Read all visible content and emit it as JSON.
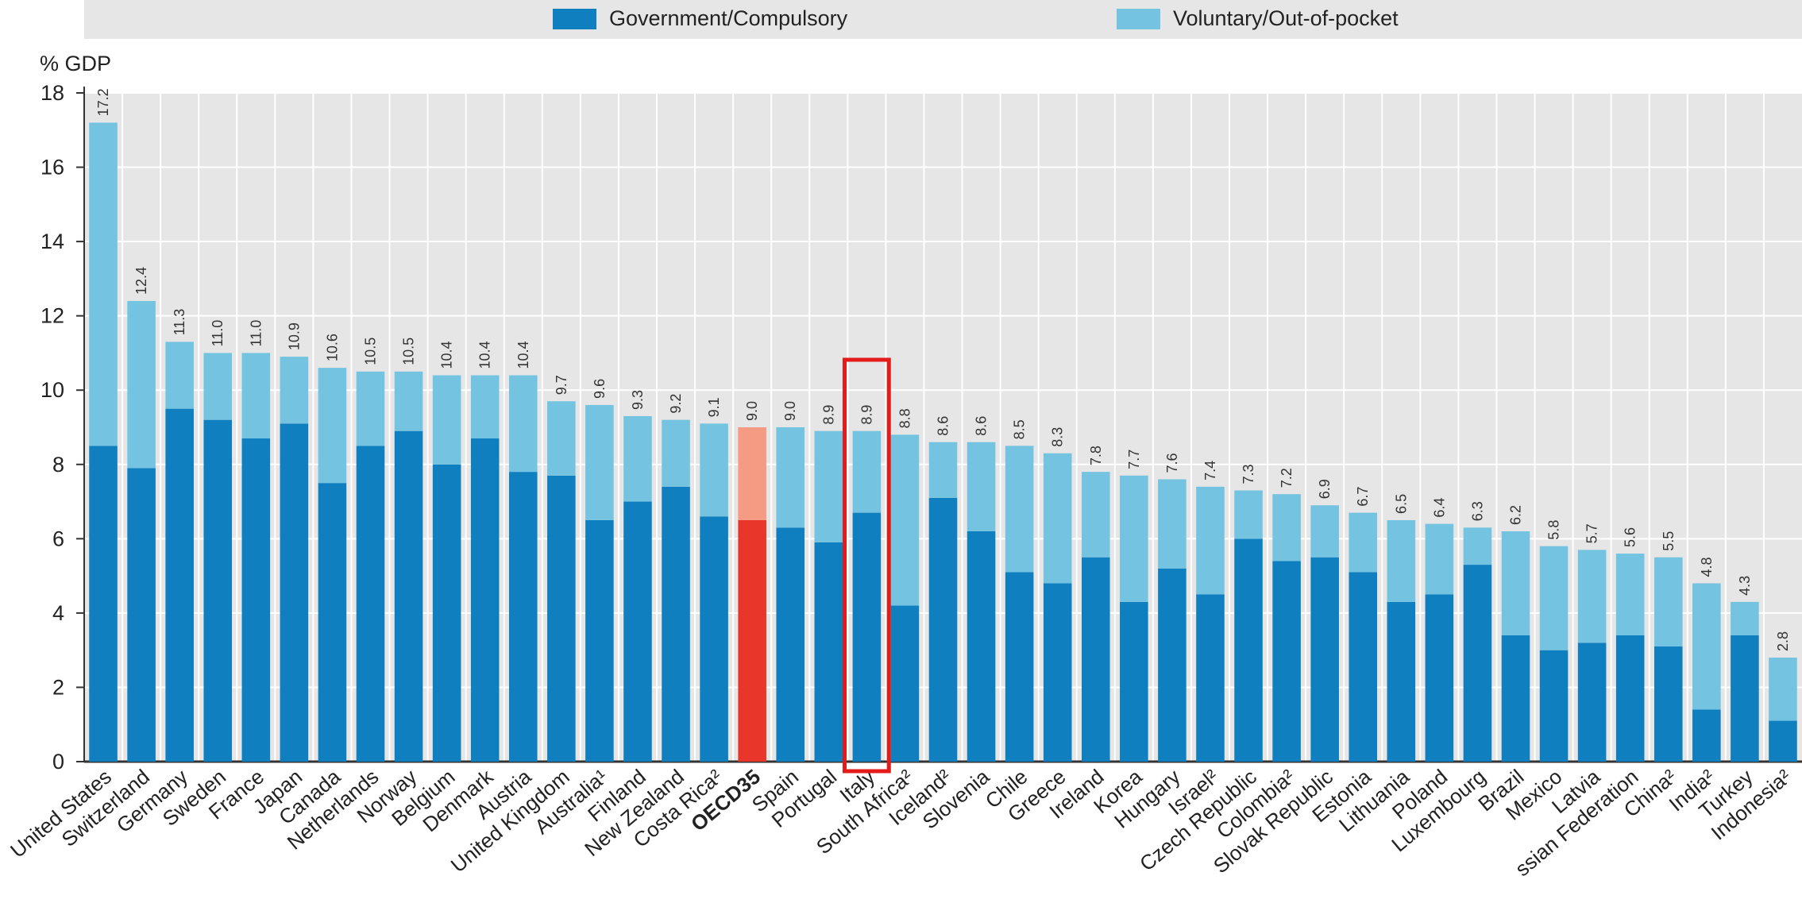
{
  "chart_data": {
    "type": "bar",
    "stacked": true,
    "ylabel": "% GDP",
    "ylim": [
      0,
      18
    ],
    "yticks": [
      0,
      2,
      4,
      6,
      8,
      10,
      12,
      14,
      16,
      18
    ],
    "grid": true,
    "legend_position": "top",
    "categories": [
      "United States",
      "Switzerland",
      "Germany",
      "Sweden",
      "France",
      "Japan",
      "Canada",
      "Netherlands",
      "Norway",
      "Belgium",
      "Denmark",
      "Austria",
      "United Kingdom",
      "Australia¹",
      "Finland",
      "New Zealand",
      "Costa Rica²",
      "OECD35",
      "Spain",
      "Portugal",
      "Italy",
      "South Africa²",
      "Iceland²",
      "Slovenia",
      "Chile",
      "Greece",
      "Ireland",
      "Korea",
      "Hungary",
      "Israel²",
      "Czech Republic",
      "Colombia²",
      "Slovak Republic",
      "Estonia",
      "Lithuania",
      "Poland",
      "Luxembourg",
      "Brazil",
      "Mexico",
      "Latvia",
      "Russian Federation",
      "China²",
      "India²",
      "Turkey",
      "Indonesia²"
    ],
    "category_labels_shown": [
      "United States",
      "Switzerland",
      "Germany",
      "Sweden",
      "France",
      "Japan",
      "Canada",
      "Netherlands",
      "Norway",
      "Belgium",
      "Denmark",
      "Austria",
      "United Kingdom",
      "Australia¹",
      "Finland",
      "New Zealand",
      "Costa Rica²",
      "OECD35",
      "Spain",
      "Portugal",
      "Italy",
      "South Africa²",
      "Iceland²",
      "Slovenia",
      "Chile",
      "Greece",
      "Ireland",
      "Korea",
      "Hungary",
      "Israel²",
      "Czech Republic",
      "Colombia²",
      "Slovak Republic",
      "Estonia",
      "Lithuania",
      "Poland",
      "Luxembourg",
      "Brazil",
      "Mexico",
      "Latvia",
      "ssian Federation",
      "China²",
      "India²",
      "Turkey",
      "Indonesia²"
    ],
    "series": [
      {
        "name": "Government/Compulsory",
        "color": "#0f7fbf",
        "values": [
          8.5,
          7.9,
          9.5,
          9.2,
          8.7,
          9.1,
          7.5,
          8.5,
          8.9,
          8.0,
          8.7,
          7.8,
          7.7,
          6.5,
          7.0,
          7.4,
          6.6,
          6.5,
          6.3,
          5.9,
          6.7,
          4.2,
          7.1,
          6.2,
          5.1,
          4.8,
          5.5,
          4.3,
          5.2,
          4.5,
          6.0,
          5.4,
          5.5,
          5.1,
          4.3,
          4.5,
          5.3,
          3.4,
          3.0,
          3.2,
          3.4,
          3.1,
          1.4,
          3.4,
          1.1
        ]
      },
      {
        "name": "Voluntary/Out-of-pocket",
        "color": "#74c3e0",
        "values": [
          8.7,
          4.5,
          1.8,
          1.8,
          2.3,
          1.8,
          3.1,
          2.0,
          1.6,
          2.4,
          1.7,
          2.6,
          2.0,
          3.1,
          2.3,
          1.8,
          2.5,
          2.5,
          2.7,
          3.0,
          2.2,
          4.6,
          1.5,
          2.4,
          3.4,
          3.5,
          2.3,
          3.4,
          2.4,
          2.9,
          1.3,
          1.8,
          1.4,
          1.6,
          2.2,
          1.9,
          1.0,
          2.8,
          2.8,
          2.5,
          2.2,
          2.4,
          3.4,
          0.9,
          1.7
        ]
      }
    ],
    "totals": [
      17.2,
      12.4,
      11.3,
      11.0,
      11.0,
      10.9,
      10.6,
      10.5,
      10.5,
      10.4,
      10.4,
      10.4,
      9.7,
      9.6,
      9.3,
      9.2,
      9.1,
      9.0,
      9.0,
      8.9,
      8.9,
      8.8,
      8.6,
      8.6,
      8.5,
      8.3,
      7.8,
      7.7,
      7.6,
      7.4,
      7.3,
      7.2,
      6.9,
      6.7,
      6.5,
      6.4,
      6.3,
      6.2,
      5.8,
      5.7,
      5.6,
      5.5,
      4.8,
      4.3,
      2.8
    ],
    "total_labels": [
      "17.2",
      "12.4",
      "11.3",
      "11.0",
      "11.0",
      "10.9",
      "10.6",
      "10.5",
      "10.5",
      "10.4",
      "10.4",
      "10.4",
      "9.7",
      "9.6",
      "9.3",
      "9.2",
      "9.1",
      "9.0",
      "9.0",
      "8.9",
      "8.9",
      "8.8",
      "8.6",
      "8.6",
      "8.5",
      "8.3",
      "7.8",
      "7.7",
      "7.6",
      "7.4",
      "7.3",
      "7.2",
      "6.9",
      "6.7",
      "6.5",
      "6.4",
      "6.3",
      "6.2",
      "5.8",
      "5.7",
      "5.6",
      "5.5",
      "4.8",
      "4.3",
      "2.8"
    ],
    "highlight": {
      "category": "OECD35",
      "colors": [
        "#e8372a",
        "#f59a83"
      ],
      "bold_label": true
    },
    "annotation": {
      "type": "box",
      "category": "Italy",
      "color": "#e31b1b"
    }
  }
}
